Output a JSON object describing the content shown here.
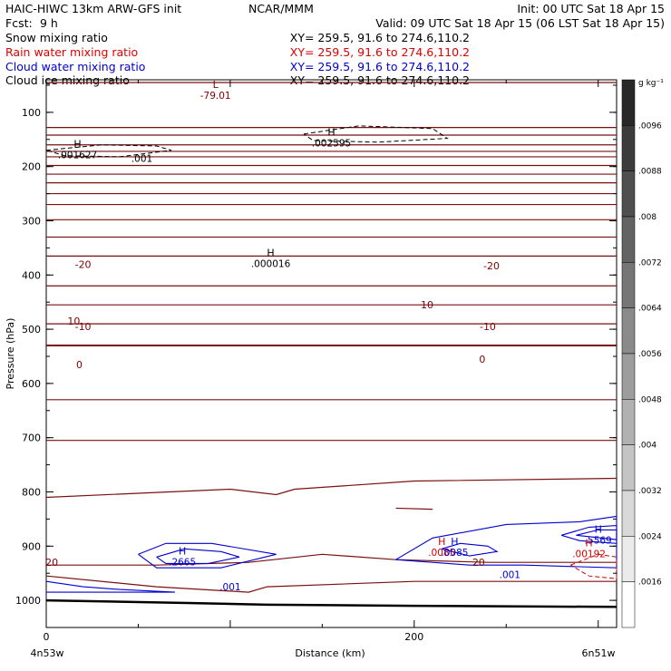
{
  "header": {
    "left_line1": "HAIC-HIWC 13km ARW-GFS init",
    "center_line1": "NCAR/MMM",
    "right_line1": "Init: 00 UTC Sat 18 Apr 15",
    "left_line2": "Fcst:",
    "fcst_value": "9 h",
    "right_line2": "Valid: 09 UTC Sat 18 Apr 15 (06 LST Sat 18 Apr 15)"
  },
  "fields": [
    {
      "name": "Snow mixing ratio",
      "xy": "XY= 259.5, 91.6 to 274.6,110.2",
      "color": "#000000"
    },
    {
      "name": "Rain water mixing ratio",
      "xy": "XY= 259.5, 91.6 to 274.6,110.2",
      "color": "#e00000"
    },
    {
      "name": "Cloud water mixing ratio",
      "xy": "XY= 259.5, 91.6 to 274.6,110.2",
      "color": "#0000d0"
    },
    {
      "name": "Cloud ice mixing ratio",
      "xy": "XY= 259.5, 91.6 to 274.6,110.2",
      "color": "#000000"
    }
  ],
  "colorbar": {
    "unit": "g kg⁻¹",
    "labels": [
      ".0096",
      ".0088",
      ".008",
      ".0072",
      ".0064",
      ".0056",
      ".0048",
      ".004",
      ".0032",
      ".0024",
      ".0016"
    ]
  },
  "chart_data": {
    "type": "contour",
    "xlabel": "Distance (km)",
    "ylabel": "Pressure (hPa)",
    "xlim": [
      0,
      310
    ],
    "ylim": [
      1050,
      40
    ],
    "x_ticks": [
      {
        "value": 0,
        "label": "0"
      },
      {
        "value": 200,
        "label": "200"
      }
    ],
    "y_ticks": [
      {
        "value": 100,
        "label": "100"
      },
      {
        "value": 200,
        "label": "200"
      },
      {
        "value": 300,
        "label": "300"
      },
      {
        "value": 400,
        "label": "400"
      },
      {
        "value": 500,
        "label": "500"
      },
      {
        "value": 600,
        "label": "600"
      },
      {
        "value": 700,
        "label": "700"
      },
      {
        "value": 800,
        "label": "800"
      },
      {
        "value": 900,
        "label": "900"
      },
      {
        "value": 1000,
        "label": "1000"
      }
    ],
    "endpoint_left": "4n53w",
    "endpoint_right": "6n51w",
    "temperature_isotherms_hpa": [
      45,
      128,
      142,
      160,
      172,
      182,
      198,
      214,
      230,
      250,
      270,
      298,
      330,
      365,
      420,
      455,
      490,
      530,
      630,
      705
    ],
    "temperature_labels": [
      {
        "x": 3,
        "p": 930,
        "text": "20"
      },
      {
        "x": 15,
        "p": 485,
        "text": "10"
      },
      {
        "x": 207,
        "p": 455,
        "text": "10"
      },
      {
        "x": 235,
        "p": 930,
        "text": "20"
      },
      {
        "x": 18,
        "p": 565,
        "text": "0"
      },
      {
        "x": 237,
        "p": 555,
        "text": "0"
      },
      {
        "x": 20,
        "p": 495,
        "text": "-10"
      },
      {
        "x": 240,
        "p": 495,
        "text": "-10"
      },
      {
        "x": 20,
        "p": 380,
        "text": "-20"
      },
      {
        "x": 242,
        "p": 383,
        "text": "-20"
      }
    ],
    "extrema": [
      {
        "x": 92,
        "p": 60,
        "marker": "L",
        "value": "-79.01",
        "color": "#800000"
      },
      {
        "x": 155,
        "p": 148,
        "marker": "H",
        "value": ".002595",
        "color": "#000000"
      },
      {
        "x": 17,
        "p": 170,
        "marker": "H",
        "value": ".001627",
        "color": "#000000"
      },
      {
        "x": 122,
        "p": 370,
        "marker": "H",
        "value": ".000016",
        "color": "#000000"
      },
      {
        "x": 74,
        "p": 920,
        "marker": "H",
        "value": ".2665",
        "color": "#0000d0"
      },
      {
        "x": 215,
        "p": 903,
        "marker": "H",
        "value": ".0085",
        "color": "#d00000"
      },
      {
        "x": 222,
        "p": 903,
        "marker": "H",
        "value": ".0085",
        "color": "#0000d0"
      },
      {
        "x": 300,
        "p": 880,
        "marker": "H",
        "value": ".5569",
        "color": "#0000d0"
      },
      {
        "x": 295,
        "p": 905,
        "marker": "H",
        "value": ".00192",
        "color": "#d00000"
      }
    ],
    "contour_labels": [
      {
        "x": 52,
        "p": 185,
        "text": ".001",
        "color": "#000000"
      },
      {
        "x": 100,
        "p": 975,
        "text": ".001",
        "color": "#0000d0"
      },
      {
        "x": 252,
        "p": 952,
        "text": ".001",
        "color": "#0000d0"
      }
    ]
  }
}
